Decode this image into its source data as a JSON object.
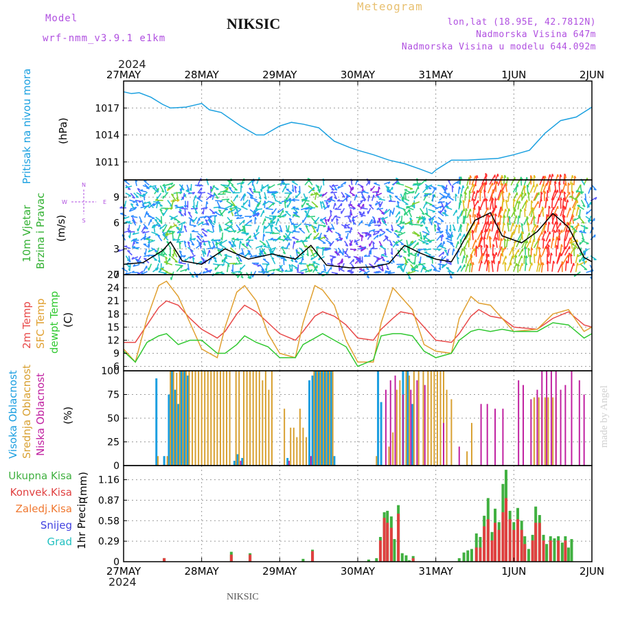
{
  "header": {
    "model_label": "Model",
    "model_value": "wrf-nmm_v3.9.1 e1km",
    "title": "NIKSIC",
    "meteogram_label": "Meteogram",
    "coords": "lon,lat (18.95E, 42.7812N)",
    "elevation": "Nadmorska Visina 647m",
    "model_elevation": "Nadmorska Visina u modelu 644.092m",
    "year_top": "2024",
    "year_bottom": "2024",
    "bottom_title": "NIKSIC",
    "credit": "made by Angel"
  },
  "colors": {
    "pressure": "#1aa0e0",
    "temp2m": "#e84848",
    "sfc": "#e0a030",
    "dewpt": "#30c830",
    "high_cloud": "#1a9ee0",
    "mid_cloud": "#d8a030",
    "low_cloud": "#c020a0",
    "total_precip": "#40b040",
    "conv_precip": "#e04040",
    "strat_precip": "#f07830",
    "snow": "#4040e0",
    "hail": "#20c0c0",
    "wind_axis_label": "#30b030",
    "wind_unit": "#000000",
    "dir_legend": "#b050e0"
  },
  "chart_data": [
    {
      "type": "line",
      "name": "pressure",
      "ylabel": "Pritisak na nivou mora",
      "unit": "(hPa)",
      "ylim": [
        1009,
        1020
      ],
      "yticks": [
        1011,
        1014,
        1017
      ],
      "xticks": [
        "27MAY",
        "28MAY",
        "29MAY",
        "30MAY",
        "31MAY",
        "1JUN",
        "2JUN"
      ],
      "grid": true,
      "series": [
        {
          "x": [
            0,
            0.1,
            0.2,
            0.35,
            0.5,
            0.6,
            0.8,
            0.9,
            1.0,
            1.1,
            1.25,
            1.5,
            1.7,
            1.8,
            2.0,
            2.15,
            2.3,
            2.5,
            2.7,
            2.9,
            3.0,
            3.2,
            3.4,
            3.6,
            3.8,
            3.95,
            4.0,
            4.2,
            4.4,
            4.6,
            4.8,
            5.0,
            5.2,
            5.4,
            5.6,
            5.8,
            6.0
          ],
          "y": [
            1018.8,
            1018.6,
            1018.7,
            1018.2,
            1017.4,
            1017.0,
            1017.1,
            1017.3,
            1017.5,
            1016.8,
            1016.5,
            1015.0,
            1014.0,
            1014.0,
            1015.0,
            1015.4,
            1015.2,
            1014.8,
            1013.3,
            1012.6,
            1012.3,
            1011.8,
            1011.2,
            1010.8,
            1010.2,
            1009.7,
            1010.1,
            1011.2,
            1011.2,
            1011.3,
            1011.4,
            1011.8,
            1012.3,
            1014.2,
            1015.6,
            1016.0,
            1017.1
          ]
        }
      ]
    },
    {
      "type": "line",
      "name": "wind",
      "ylabel": [
        "10m Vjetar",
        "Brzina i Pravac"
      ],
      "unit": "(m/s)",
      "ylim": [
        0,
        11
      ],
      "yticks": [
        0,
        3,
        6,
        9
      ],
      "grid": true,
      "direction_legend": {
        "north": "N",
        "west": "W",
        "east": "E",
        "south": "S"
      },
      "series": [
        {
          "x": [
            0,
            0.25,
            0.5,
            0.6,
            0.75,
            1.0,
            1.3,
            1.6,
            1.9,
            2.2,
            2.4,
            2.6,
            2.9,
            3.2,
            3.4,
            3.6,
            3.8,
            4.0,
            4.2,
            4.3,
            4.5,
            4.7,
            4.85,
            5.1,
            5.3,
            5.5,
            5.7,
            5.9,
            6.0
          ],
          "y": [
            1.2,
            1.4,
            2.8,
            3.8,
            1.6,
            1.2,
            3.0,
            1.8,
            2.4,
            1.8,
            3.4,
            1.1,
            0.8,
            0.9,
            1.3,
            3.4,
            2.5,
            1.8,
            1.5,
            3.0,
            6.3,
            7.2,
            4.5,
            3.7,
            5.0,
            7.1,
            5.5,
            2.0,
            1.5
          ]
        }
      ]
    },
    {
      "type": "line",
      "name": "temperature",
      "ylabel": [
        "2m Temp",
        "SFC Temp",
        "dewpt Temp"
      ],
      "unit": "(C)",
      "ylim": [
        5,
        27
      ],
      "yticks": [
        6,
        9,
        12,
        15,
        18,
        21,
        24,
        27
      ],
      "grid": true,
      "series": [
        {
          "name": "2m Temp",
          "x": [
            0,
            0.15,
            0.3,
            0.45,
            0.55,
            0.7,
            0.85,
            1.0,
            1.2,
            1.3,
            1.45,
            1.55,
            1.7,
            1.85,
            2.0,
            2.2,
            2.3,
            2.45,
            2.55,
            2.7,
            2.85,
            3.0,
            3.2,
            3.3,
            3.45,
            3.55,
            3.7,
            3.85,
            4.0,
            4.2,
            4.3,
            4.45,
            4.55,
            4.7,
            4.85,
            5.0,
            5.3,
            5.5,
            5.7,
            5.9,
            6.0
          ],
          "y": [
            11.5,
            11.5,
            15.5,
            19.5,
            21.0,
            20.0,
            17.0,
            14.5,
            12.5,
            14.0,
            18.0,
            20.0,
            18.5,
            16.0,
            13.5,
            12.0,
            14.0,
            17.5,
            18.5,
            17.5,
            15.5,
            12.5,
            12.0,
            14.5,
            17.0,
            18.5,
            18.0,
            15.0,
            12.0,
            11.5,
            13.5,
            17.5,
            19.0,
            17.5,
            17.0,
            15.0,
            14.5,
            17.0,
            18.5,
            15.5,
            15.0
          ]
        },
        {
          "name": "SFC Temp",
          "x": [
            0,
            0.15,
            0.3,
            0.45,
            0.55,
            0.7,
            0.85,
            1.0,
            1.2,
            1.3,
            1.45,
            1.55,
            1.7,
            1.85,
            2.0,
            2.2,
            2.3,
            2.45,
            2.55,
            2.7,
            2.85,
            3.0,
            3.2,
            3.3,
            3.45,
            3.55,
            3.7,
            3.85,
            4.0,
            4.2,
            4.3,
            4.45,
            4.55,
            4.7,
            4.85,
            5.0,
            5.3,
            5.5,
            5.7,
            5.9,
            6.0
          ],
          "y": [
            10.0,
            7.0,
            17.0,
            24.5,
            25.5,
            22.0,
            16.0,
            10.0,
            8.0,
            15.0,
            23.0,
            24.5,
            21.0,
            13.5,
            9.0,
            8.0,
            16.0,
            24.5,
            23.5,
            20.0,
            12.0,
            7.0,
            7.0,
            16.0,
            24.0,
            22.0,
            19.0,
            11.0,
            9.5,
            9.0,
            17.0,
            22.0,
            20.5,
            20.0,
            17.0,
            14.0,
            14.5,
            18.0,
            19.0,
            14.0,
            15.0
          ]
        },
        {
          "name": "dewpt Temp",
          "x": [
            0,
            0.15,
            0.3,
            0.45,
            0.55,
            0.7,
            0.85,
            1.0,
            1.2,
            1.3,
            1.45,
            1.55,
            1.7,
            1.85,
            2.0,
            2.2,
            2.3,
            2.45,
            2.55,
            2.7,
            2.85,
            3.0,
            3.2,
            3.3,
            3.45,
            3.55,
            3.7,
            3.85,
            4.0,
            4.2,
            4.3,
            4.45,
            4.55,
            4.7,
            4.85,
            5.0,
            5.3,
            5.5,
            5.7,
            5.9,
            6.0
          ],
          "y": [
            9.5,
            7.0,
            11.5,
            13.0,
            13.5,
            11.0,
            12.0,
            12.0,
            9.0,
            9.0,
            11.0,
            13.0,
            11.5,
            10.5,
            8.0,
            8.0,
            11.0,
            12.5,
            13.5,
            12.0,
            10.5,
            6.0,
            7.5,
            13.0,
            13.5,
            13.5,
            13.0,
            9.5,
            8.0,
            9.0,
            12.0,
            14.0,
            14.5,
            14.0,
            14.5,
            14.0,
            14.0,
            16.0,
            15.5,
            12.5,
            13.5
          ]
        }
      ]
    },
    {
      "type": "bar",
      "name": "cloudiness",
      "ylabel": [
        "Visoka Oblacnost",
        "Srednja Oblacnost",
        "Niska Oblacnost"
      ],
      "unit": "(%)",
      "ylim": [
        0,
        100
      ],
      "yticks": [
        0,
        25,
        50,
        75,
        100
      ],
      "grid": true,
      "series": [
        {
          "name": "Visoka Oblacnost",
          "x": [
            0.42,
            0.52,
            0.58,
            0.62,
            0.66,
            0.7,
            0.74,
            0.78,
            0.82,
            1.42,
            1.46,
            1.52,
            2.1,
            2.38,
            2.42,
            2.46,
            2.5,
            2.54,
            2.58,
            2.62,
            2.66,
            2.7,
            3.26,
            3.3,
            3.58,
            3.64,
            3.7
          ],
          "values": [
            92,
            10,
            75,
            100,
            80,
            65,
            100,
            100,
            95,
            5,
            12,
            8,
            8,
            90,
            95,
            100,
            100,
            100,
            100,
            100,
            100,
            10,
            100,
            67,
            100,
            100,
            65
          ]
        },
        {
          "name": "Srednja Oblacnost",
          "x": [
            0.44,
            0.56,
            0.6,
            0.64,
            0.68,
            0.72,
            0.76,
            0.8,
            0.84,
            0.88,
            0.92,
            0.96,
            1.0,
            1.04,
            1.08,
            1.12,
            1.16,
            1.2,
            1.24,
            1.28,
            1.32,
            1.36,
            1.44,
            1.48,
            1.54,
            1.58,
            1.62,
            1.66,
            1.7,
            1.74,
            1.78,
            1.82,
            1.86,
            1.9,
            2.06,
            2.14,
            2.18,
            2.22,
            2.26,
            2.3,
            2.34,
            2.44,
            2.48,
            2.52,
            2.56,
            2.6,
            2.64,
            2.68,
            3.24,
            3.4,
            3.45,
            3.5,
            3.54,
            3.62,
            3.66,
            3.72,
            3.78,
            3.84,
            3.9,
            3.94,
            3.98,
            4.02,
            4.06,
            4.1,
            4.14,
            4.2,
            4.4,
            4.46,
            5.26,
            5.32,
            5.36,
            5.4,
            5.44,
            5.5,
            5.54
          ],
          "values": [
            10,
            10,
            100,
            100,
            98,
            100,
            100,
            100,
            100,
            100,
            100,
            100,
            100,
            100,
            100,
            100,
            100,
            100,
            100,
            100,
            100,
            100,
            100,
            100,
            100,
            100,
            100,
            100,
            100,
            100,
            90,
            100,
            80,
            100,
            60,
            40,
            40,
            30,
            60,
            40,
            30,
            100,
            100,
            100,
            100,
            100,
            100,
            100,
            10,
            20,
            35,
            80,
            90,
            100,
            95,
            100,
            100,
            100,
            100,
            100,
            100,
            100,
            100,
            100,
            80,
            70,
            15,
            45,
            72,
            72,
            72,
            72,
            72,
            72,
            72
          ]
        },
        {
          "name": "Niska Oblacnost",
          "x": [
            1.5,
            2.12,
            2.4,
            3.36,
            3.42,
            3.48,
            3.58,
            3.68,
            3.76,
            3.86,
            4.1,
            4.3,
            4.58,
            4.66,
            4.76,
            4.86,
            5.06,
            5.12,
            5.22,
            5.3,
            5.36,
            5.42,
            5.48,
            5.54,
            5.6,
            5.66,
            5.74,
            5.84,
            5.9
          ],
          "values": [
            5,
            5,
            10,
            80,
            90,
            95,
            75,
            80,
            90,
            85,
            45,
            20,
            65,
            65,
            60,
            60,
            90,
            85,
            70,
            80,
            100,
            100,
            100,
            100,
            80,
            85,
            100,
            90,
            75
          ]
        }
      ]
    },
    {
      "type": "bar",
      "name": "precipitation",
      "ylabel": "1hr Precip",
      "unit": "(mm)",
      "ylim": [
        0,
        1.36
      ],
      "yticks": [
        0,
        0.29,
        0.58,
        0.87,
        1.16
      ],
      "grid": true,
      "legend": [
        "Ukupna Kisa",
        "Konvek.Kisa",
        "Zaledj.Kisa",
        "Snijeg",
        "Grad"
      ],
      "series": [
        {
          "name": "Ukupna Kisa",
          "x": [
            0.52,
            1.38,
            1.62,
            2.3,
            2.42,
            3.14,
            3.24,
            3.29,
            3.34,
            3.38,
            3.43,
            3.47,
            3.52,
            3.57,
            3.62,
            3.66,
            3.71,
            4.3,
            4.36,
            4.41,
            4.46,
            4.52,
            4.57,
            4.62,
            4.67,
            4.72,
            4.76,
            4.81,
            4.86,
            4.9,
            4.95,
            5.0,
            5.05,
            5.1,
            5.14,
            5.19,
            5.24,
            5.28,
            5.33,
            5.38,
            5.42,
            5.47,
            5.52,
            5.57,
            5.62,
            5.66,
            5.7,
            5.74
          ],
          "values": [
            0.05,
            0.14,
            0.12,
            0.04,
            0.17,
            0.03,
            0.05,
            0.35,
            0.7,
            0.72,
            0.64,
            0.32,
            0.8,
            0.12,
            0.09,
            0.02,
            0.08,
            0.05,
            0.13,
            0.16,
            0.18,
            0.4,
            0.35,
            0.65,
            0.9,
            0.42,
            0.75,
            0.56,
            1.1,
            1.3,
            0.72,
            0.56,
            0.76,
            0.58,
            0.36,
            0.18,
            0.38,
            0.78,
            0.66,
            0.38,
            0.25,
            0.36,
            0.33,
            0.36,
            0.27,
            0.36,
            0.2,
            0.32
          ]
        },
        {
          "name": "Konvek.Kisa",
          "x": [
            0.52,
            1.38,
            1.62,
            2.42,
            3.29,
            3.34,
            3.38,
            3.43,
            3.52,
            3.71,
            4.52,
            4.57,
            4.62,
            4.67,
            4.72,
            4.76,
            4.81,
            4.86,
            4.9,
            4.95,
            5.0,
            5.05,
            5.1,
            5.14,
            5.24,
            5.28,
            5.33,
            5.38,
            5.47,
            5.57,
            5.66
          ],
          "values": [
            0.05,
            0.1,
            0.1,
            0.15,
            0.3,
            0.62,
            0.55,
            0.48,
            0.68,
            0.05,
            0.2,
            0.2,
            0.5,
            0.6,
            0.3,
            0.55,
            0.45,
            0.7,
            0.9,
            0.6,
            0.45,
            0.6,
            0.45,
            0.25,
            0.3,
            0.55,
            0.55,
            0.3,
            0.3,
            0.3,
            0.3
          ]
        }
      ]
    }
  ]
}
